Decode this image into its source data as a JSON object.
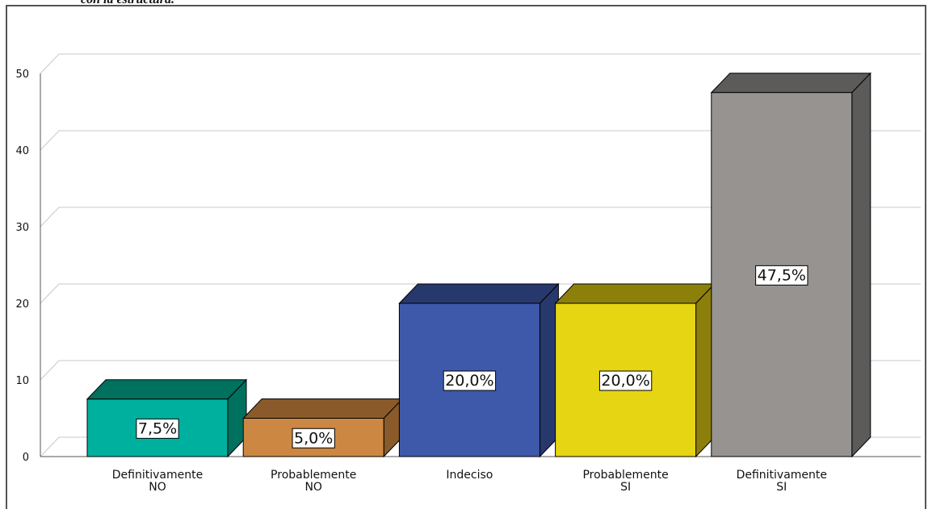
{
  "caption": "con la estructura.",
  "chart_data": {
    "type": "bar3d",
    "categories": [
      "Definitivamente\nNO",
      "Probablemente\nNO",
      "Indeciso",
      "Probablemente\nSI",
      "Definitivamente\nSI"
    ],
    "values": [
      7.5,
      5.0,
      20.0,
      20.0,
      47.5
    ],
    "value_labels": [
      "7,5%",
      "5,0%",
      "20,0%",
      "20,0%",
      "47,5%"
    ],
    "colors": [
      "#00b09e",
      "#cc8742",
      "#3e59aa",
      "#e6d512",
      "#979391"
    ],
    "top_colors": [
      "#00705f",
      "#8a5a2a",
      "#27386d",
      "#8c800b",
      "#5c5b5a"
    ],
    "ylim": [
      0,
      50
    ],
    "yticks": [
      0,
      10,
      20,
      30,
      40,
      50
    ],
    "grid": true
  }
}
